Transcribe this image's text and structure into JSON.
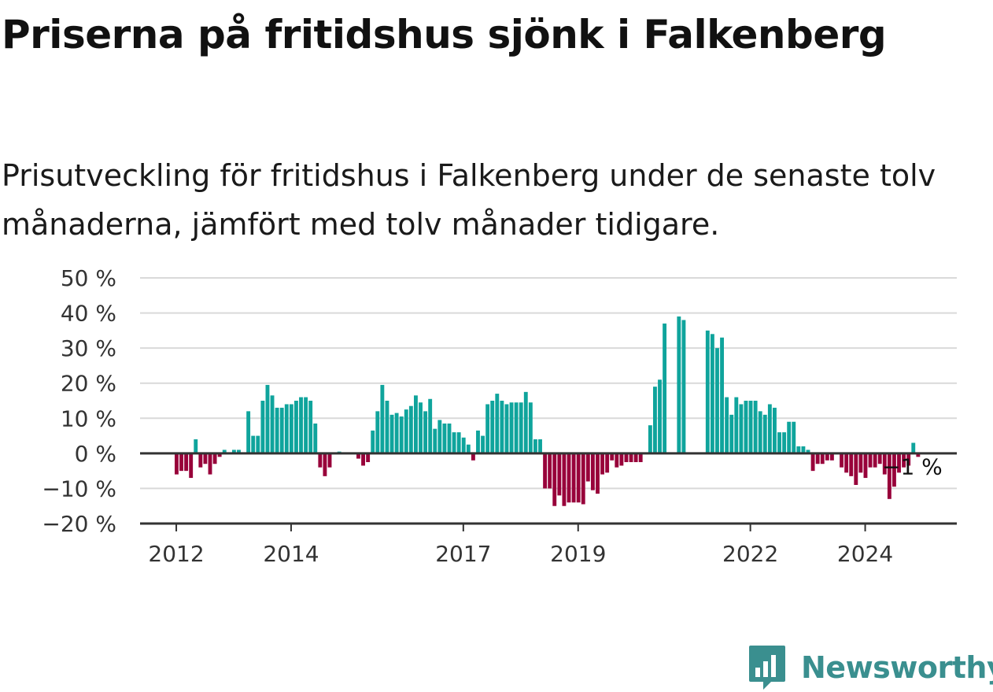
{
  "title": "Priserna på fritidshus sjönk i Falkenberg",
  "subtitle": "Prisutveckling för fritidshus i Falkenberg under de senaste tolv månaderna, jämfört med tolv månader tidigare.",
  "brand": {
    "name": "Newsworthy",
    "icon": "newsworthy-logo-icon",
    "color": "#3a8f8f"
  },
  "colors": {
    "positive": "#0fa49c",
    "negative": "#98003a",
    "grid": "#d9d9d9",
    "axis": "#333333"
  },
  "chart_data": {
    "type": "bar",
    "title": "",
    "xlabel": "",
    "ylabel": "",
    "ylim": [
      -20,
      50
    ],
    "yticks": [
      -20,
      -10,
      0,
      10,
      20,
      30,
      40,
      50
    ],
    "ytick_labels": [
      "−20 %",
      "−10 %",
      "0 %",
      "10 %",
      "20 %",
      "30 %",
      "40 %",
      "50 %"
    ],
    "xticks": [
      2012,
      2014,
      2017,
      2019,
      2022,
      2024
    ],
    "x_start": "2012-01",
    "x_end": "2025-12",
    "grid": true,
    "end_label": "−1 %",
    "series": [
      {
        "values": [
          -6,
          -5,
          -5,
          -7,
          4,
          -4,
          -3,
          -6,
          -3,
          -1,
          1,
          0,
          1,
          1,
          0,
          12,
          5,
          5,
          15,
          19.5,
          16.5,
          13,
          13,
          14,
          14,
          15,
          16,
          16,
          15,
          8.5,
          -4,
          -6.5,
          -4,
          0,
          0.5,
          0,
          0,
          0,
          -1.5,
          -3.5,
          -2.5,
          6.5,
          12,
          19.5,
          15,
          11,
          11.5,
          10.5,
          12.5,
          13.5,
          16.5,
          14.5,
          12,
          15.5,
          7,
          9.5,
          8.5,
          8.5,
          6,
          6,
          4.5,
          2.5,
          -2,
          6.5,
          5,
          14,
          15,
          17,
          15,
          14,
          14.5,
          14.5,
          14.5,
          17.5,
          14.5,
          4,
          4,
          -10,
          -10,
          -15,
          -12,
          -15,
          -14,
          -14,
          -14,
          -14.5,
          -8,
          -10.5,
          -11.5,
          -6,
          -5.5,
          -2,
          -4,
          -3.5,
          -2.5,
          -2.5,
          -2.5,
          -2.5,
          0,
          8,
          19,
          21,
          37,
          0,
          0,
          39,
          38,
          0,
          0,
          0,
          0,
          35,
          34,
          30,
          33,
          16,
          11,
          16,
          14,
          15,
          15,
          15,
          12,
          11,
          14,
          13,
          6,
          6,
          9,
          9,
          2,
          2,
          1,
          -5,
          -3,
          -3,
          -2,
          -2,
          0,
          -4,
          -5.5,
          -6.5,
          -9,
          -5.5,
          -7,
          -4,
          -4,
          -3,
          -6,
          -13,
          -9.5,
          -5.5,
          -4,
          -3.5,
          3,
          -1
        ]
      }
    ]
  }
}
